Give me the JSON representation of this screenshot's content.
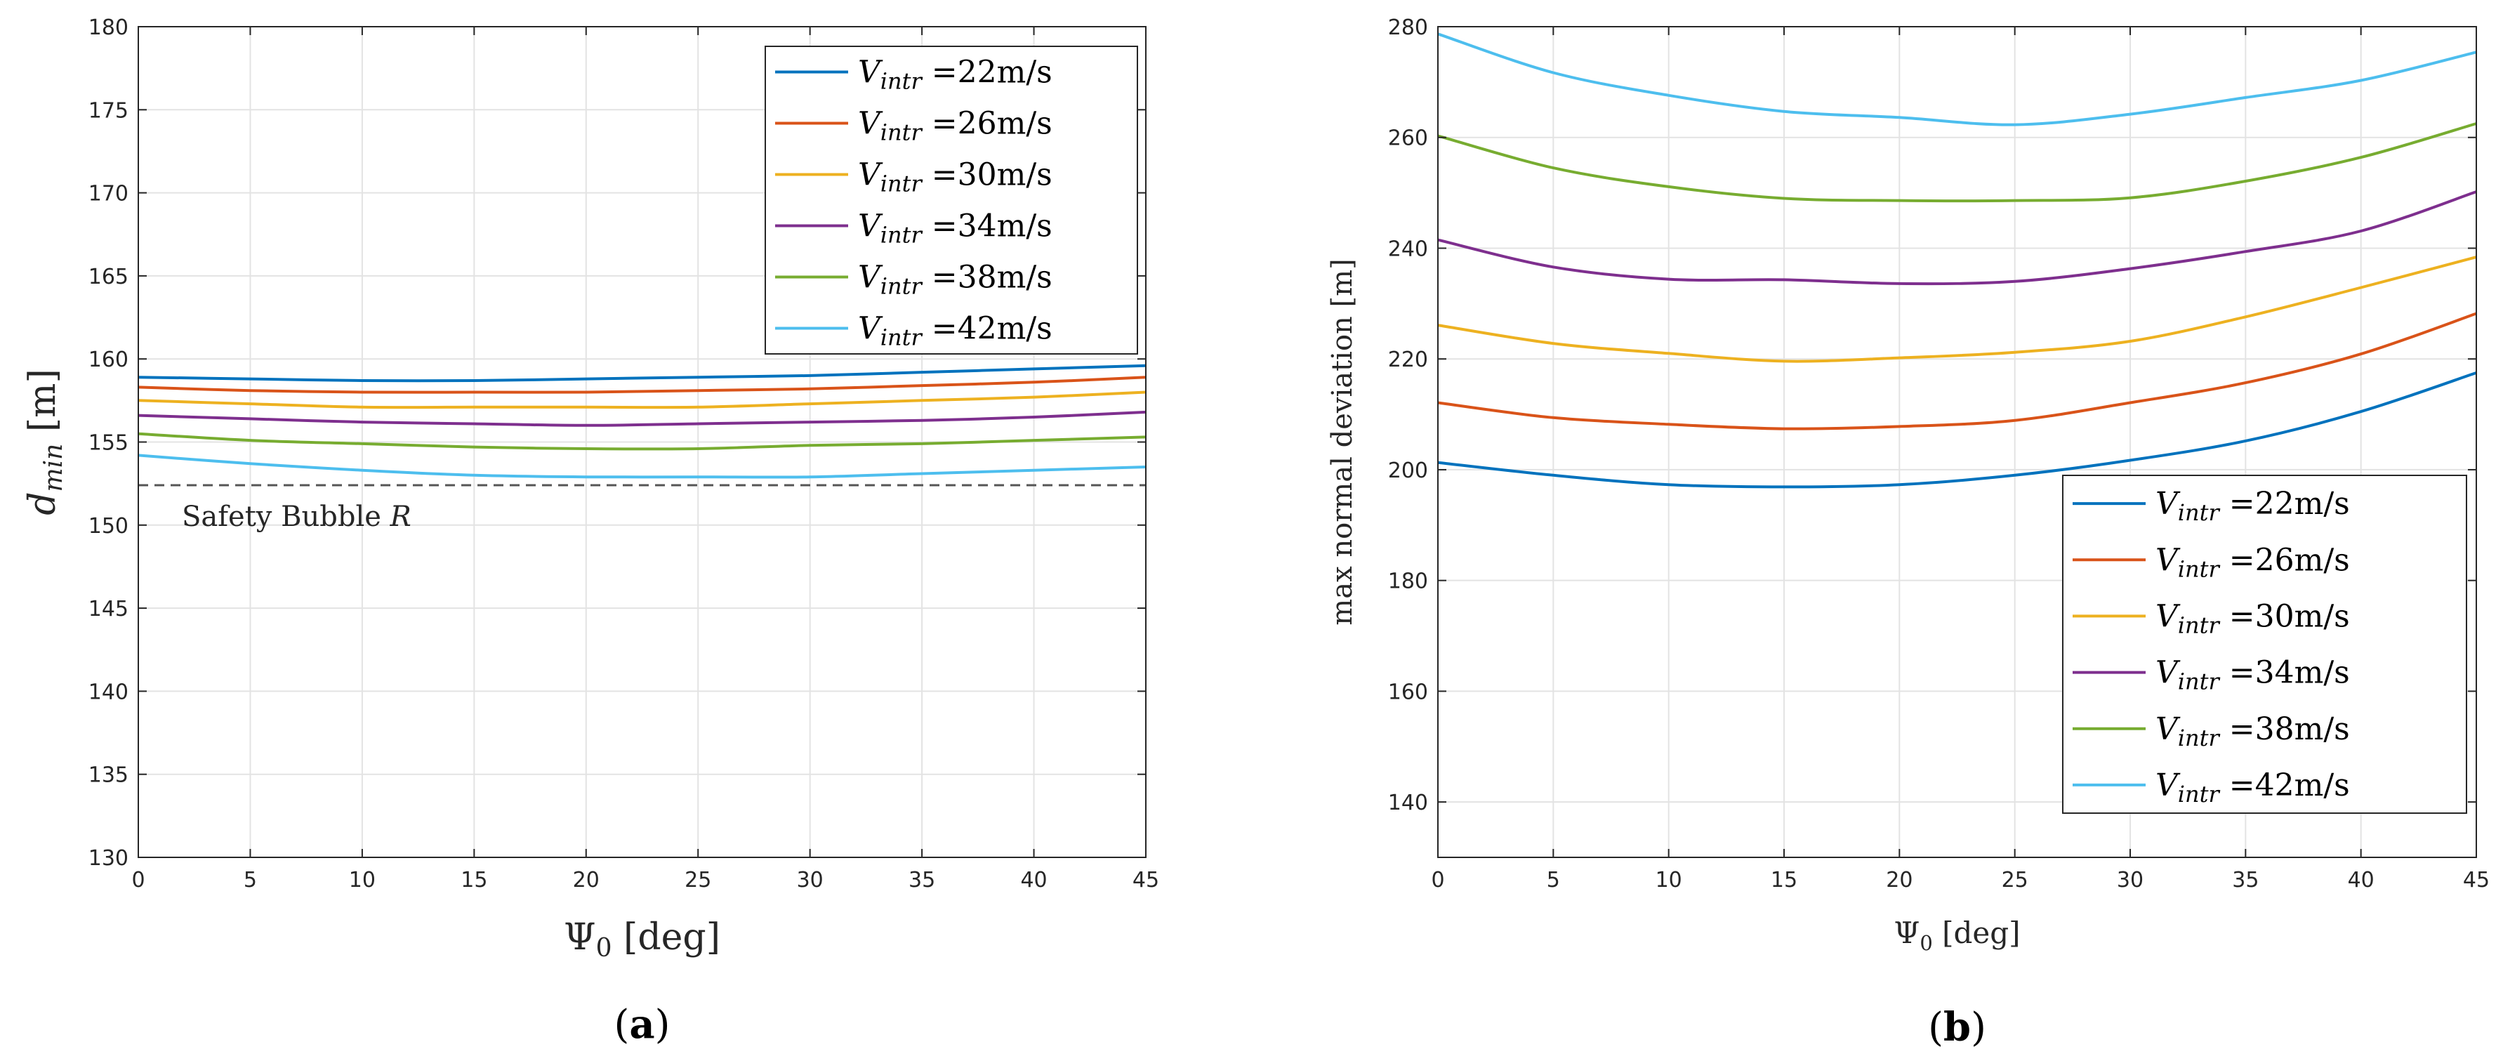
{
  "chart_data": [
    {
      "type": "line",
      "panel_label": "(a)",
      "title": "",
      "xlabel": "Ψ0 [deg]",
      "ylabel": "dmin [m]",
      "xlim": [
        0,
        45
      ],
      "ylim": [
        130,
        180
      ],
      "xticks": [
        0,
        5,
        10,
        15,
        20,
        25,
        30,
        35,
        40,
        45
      ],
      "yticks": [
        130,
        135,
        140,
        145,
        150,
        155,
        160,
        165,
        170,
        175,
        180
      ],
      "grid": true,
      "legend_position": "top-right",
      "reference_line": {
        "y": 152.4,
        "label": "Safety Bubble R",
        "color": "#555555"
      },
      "x": [
        0,
        5,
        10,
        15,
        20,
        25,
        30,
        35,
        40,
        45
      ],
      "series": [
        {
          "name": "Vintr =22m/s",
          "color": "#0072BD",
          "values": [
            158.9,
            158.8,
            158.7,
            158.7,
            158.8,
            158.9,
            159.0,
            159.2,
            159.4,
            159.6
          ]
        },
        {
          "name": "Vintr =26m/s",
          "color": "#D95319",
          "values": [
            158.3,
            158.1,
            158.0,
            158.0,
            158.0,
            158.1,
            158.2,
            158.4,
            158.6,
            158.9
          ]
        },
        {
          "name": "Vintr =30m/s",
          "color": "#EDB120",
          "values": [
            157.5,
            157.3,
            157.1,
            157.1,
            157.1,
            157.1,
            157.3,
            157.5,
            157.7,
            158.0
          ]
        },
        {
          "name": "Vintr =34m/s",
          "color": "#7E2F8E",
          "values": [
            156.6,
            156.4,
            156.2,
            156.1,
            156.0,
            156.1,
            156.2,
            156.3,
            156.5,
            156.8
          ]
        },
        {
          "name": "Vintr =38m/s",
          "color": "#77AC30",
          "values": [
            155.5,
            155.1,
            154.9,
            154.7,
            154.6,
            154.6,
            154.8,
            154.9,
            155.1,
            155.3
          ]
        },
        {
          "name": "Vintr =42m/s",
          "color": "#4DBEEE",
          "values": [
            154.2,
            153.7,
            153.3,
            153.0,
            152.9,
            152.9,
            152.9,
            153.1,
            153.3,
            153.5
          ]
        }
      ]
    },
    {
      "type": "line",
      "panel_label": "(b)",
      "title": "",
      "xlabel": "Ψ0 [deg]",
      "ylabel": "max normal deviation [m]",
      "xlim": [
        0,
        45
      ],
      "ylim": [
        130,
        280
      ],
      "xticks": [
        0,
        5,
        10,
        15,
        20,
        25,
        30,
        35,
        40,
        45
      ],
      "yticks": [
        140,
        160,
        180,
        200,
        220,
        240,
        260,
        280
      ],
      "grid": true,
      "legend_position": "bottom-right",
      "x": [
        0,
        5,
        10,
        15,
        20,
        25,
        30,
        35,
        40,
        45
      ],
      "series": [
        {
          "name": "Vintr =22m/s",
          "color": "#0072BD",
          "values": [
            201.3,
            199.0,
            197.3,
            196.9,
            197.3,
            199.0,
            201.7,
            205.2,
            210.5,
            217.5
          ]
        },
        {
          "name": "Vintr =26m/s",
          "color": "#D95319",
          "values": [
            212.1,
            209.4,
            208.2,
            207.4,
            207.8,
            208.9,
            212.1,
            215.7,
            220.9,
            228.2
          ]
        },
        {
          "name": "Vintr =30m/s",
          "color": "#EDB120",
          "values": [
            226.1,
            222.8,
            221.0,
            219.6,
            220.2,
            221.2,
            223.2,
            227.6,
            232.9,
            238.4
          ]
        },
        {
          "name": "Vintr =34m/s",
          "color": "#7E2F8E",
          "values": [
            241.5,
            236.6,
            234.4,
            234.3,
            233.6,
            234.0,
            236.3,
            239.4,
            243.1,
            250.2
          ]
        },
        {
          "name": "Vintr =38m/s",
          "color": "#77AC30",
          "values": [
            260.3,
            254.5,
            251.1,
            249.0,
            248.6,
            248.6,
            249.1,
            252.1,
            256.4,
            262.5
          ]
        },
        {
          "name": "Vintr =42m/s",
          "color": "#4DBEEE",
          "values": [
            278.7,
            271.7,
            267.6,
            264.7,
            263.6,
            262.3,
            264.2,
            267.2,
            270.3,
            275.4
          ]
        }
      ]
    }
  ]
}
